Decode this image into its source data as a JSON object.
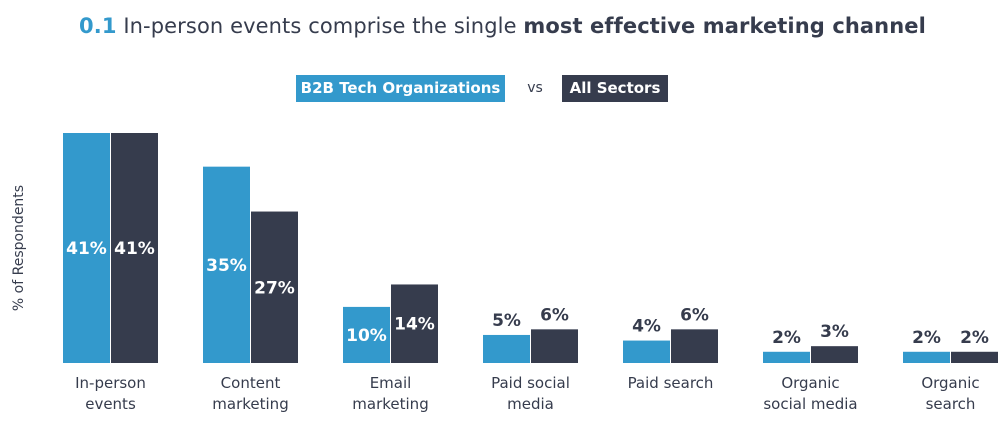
{
  "header": {
    "number": "0.1",
    "text_regular": "In-person events comprise the single",
    "text_bold": "most effective marketing channel"
  },
  "legend": {
    "series1": "B2B Tech Organizations",
    "vs": "vs",
    "series2": "All Sectors"
  },
  "colors": {
    "series1": "#3399cc",
    "series2": "#363c4d",
    "text": "#363c4d"
  },
  "chart_data": {
    "type": "bar",
    "title": "0.1 In-person events comprise the single most effective marketing channel",
    "ylabel": "% of Respondents",
    "xlabel": "",
    "ylim": [
      0,
      41
    ],
    "legend_position": "top-center",
    "categories": [
      [
        "In-person",
        "events"
      ],
      [
        "Content",
        "marketing"
      ],
      [
        "Email",
        "marketing"
      ],
      [
        "Paid social",
        "media"
      ],
      [
        "Paid search"
      ],
      [
        "Organic",
        "social media"
      ],
      [
        "Organic",
        "search"
      ]
    ],
    "series": [
      {
        "name": "B2B Tech Organizations",
        "values": [
          41,
          35,
          10,
          5,
          4,
          2,
          2
        ],
        "labels": [
          "41%",
          "35%",
          "10%",
          "5%",
          "4%",
          "2%",
          "2%"
        ]
      },
      {
        "name": "All Sectors",
        "values": [
          41,
          27,
          14,
          6,
          6,
          3,
          2
        ],
        "labels": [
          "41%",
          "27%",
          "14%",
          "6%",
          "6%",
          "3%",
          "2%"
        ]
      }
    ]
  }
}
